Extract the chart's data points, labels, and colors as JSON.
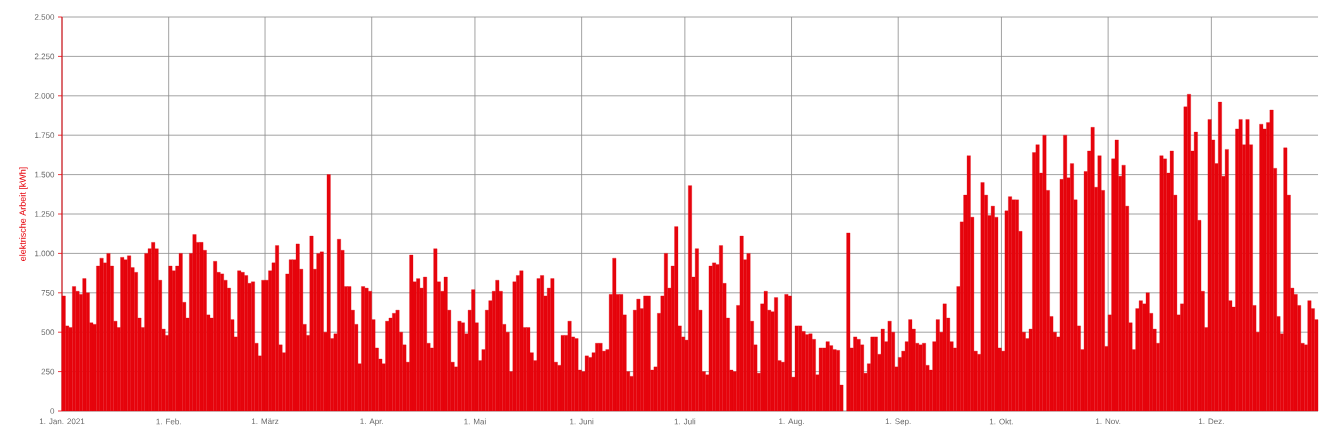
{
  "chart_data": {
    "type": "bar",
    "ylabel": "elektrische Arbeit [kWh]",
    "color": "#e6040c",
    "grid": true,
    "xlim": [
      "2021-01-01",
      "2022-01-01"
    ],
    "xticks": [
      {
        "value": "2021-01-01",
        "label": "1. Jan. 2021"
      },
      {
        "value": "2021-02-01",
        "label": "1. Feb."
      },
      {
        "value": "2021-03-01",
        "label": "1. März"
      },
      {
        "value": "2021-04-01",
        "label": "1. Apr."
      },
      {
        "value": "2021-05-01",
        "label": "1. Mai"
      },
      {
        "value": "2021-06-01",
        "label": "1. Juni"
      },
      {
        "value": "2021-07-01",
        "label": "1. Juli"
      },
      {
        "value": "2021-08-01",
        "label": "1. Aug."
      },
      {
        "value": "2021-09-01",
        "label": "1. Sep."
      },
      {
        "value": "2021-10-01",
        "label": "1. Okt."
      },
      {
        "value": "2021-11-01",
        "label": "1. Nov."
      },
      {
        "value": "2021-12-01",
        "label": "1. Dez."
      }
    ],
    "ylim": [
      0,
      2500
    ],
    "yticks": [
      0,
      250,
      500,
      750,
      {
        "value": 1000,
        "label": "1.000"
      },
      {
        "value": 1250,
        "label": "1.250"
      },
      {
        "value": 1500,
        "label": "1.500"
      },
      {
        "value": 1750,
        "label": "1.750"
      },
      {
        "value": 2000,
        "label": "2.000"
      },
      {
        "value": 2250,
        "label": "2.250"
      },
      {
        "value": 2500,
        "label": "2.500"
      }
    ],
    "x": [
      "2021-01-01",
      "2021-01-02",
      "2021-01-03",
      "2021-01-04",
      "2021-01-05",
      "2021-01-06",
      "2021-01-07",
      "2021-01-08",
      "2021-01-09",
      "2021-01-10",
      "2021-01-11",
      "2021-01-12",
      "2021-01-13",
      "2021-01-14",
      "2021-01-15",
      "2021-01-16",
      "2021-01-17",
      "2021-01-18",
      "2021-01-19",
      "2021-01-20",
      "2021-01-21",
      "2021-01-22",
      "2021-01-23",
      "2021-01-24",
      "2021-01-25",
      "2021-01-26",
      "2021-01-27",
      "2021-01-28",
      "2021-01-29",
      "2021-01-30",
      "2021-01-31",
      "2021-02-01",
      "2021-02-02",
      "2021-02-03",
      "2021-02-04",
      "2021-02-05",
      "2021-02-06",
      "2021-02-07",
      "2021-02-08",
      "2021-02-09",
      "2021-02-10",
      "2021-02-11",
      "2021-02-12",
      "2021-02-13",
      "2021-02-14",
      "2021-02-15",
      "2021-02-16",
      "2021-02-17",
      "2021-02-18",
      "2021-02-19",
      "2021-02-20",
      "2021-02-21",
      "2021-02-22",
      "2021-02-23",
      "2021-02-24",
      "2021-02-25",
      "2021-02-26",
      "2021-02-27",
      "2021-02-28",
      "2021-03-01",
      "2021-03-02",
      "2021-03-03",
      "2021-03-04",
      "2021-03-05",
      "2021-03-06",
      "2021-03-07",
      "2021-03-08",
      "2021-03-09",
      "2021-03-10",
      "2021-03-11",
      "2021-03-12",
      "2021-03-13",
      "2021-03-14",
      "2021-03-15",
      "2021-03-16",
      "2021-03-17",
      "2021-03-18",
      "2021-03-19",
      "2021-03-20",
      "2021-03-21",
      "2021-03-22",
      "2021-03-23",
      "2021-03-24",
      "2021-03-25",
      "2021-03-26",
      "2021-03-27",
      "2021-03-28",
      "2021-03-29",
      "2021-03-30",
      "2021-03-31",
      "2021-04-01",
      "2021-04-02",
      "2021-04-03",
      "2021-04-04",
      "2021-04-05",
      "2021-04-06",
      "2021-04-07",
      "2021-04-08",
      "2021-04-09",
      "2021-04-10",
      "2021-04-11",
      "2021-04-12",
      "2021-04-13",
      "2021-04-14",
      "2021-04-15",
      "2021-04-16",
      "2021-04-17",
      "2021-04-18",
      "2021-04-19",
      "2021-04-20",
      "2021-04-21",
      "2021-04-22",
      "2021-04-23",
      "2021-04-24",
      "2021-04-25",
      "2021-04-26",
      "2021-04-27",
      "2021-04-28",
      "2021-04-29",
      "2021-04-30",
      "2021-05-01",
      "2021-05-02",
      "2021-05-03",
      "2021-05-04",
      "2021-05-05",
      "2021-05-06",
      "2021-05-07",
      "2021-05-08",
      "2021-05-09",
      "2021-05-10",
      "2021-05-11",
      "2021-05-12",
      "2021-05-13",
      "2021-05-14",
      "2021-05-15",
      "2021-05-16",
      "2021-05-17",
      "2021-05-18",
      "2021-05-19",
      "2021-05-20",
      "2021-05-21",
      "2021-05-22",
      "2021-05-23",
      "2021-05-24",
      "2021-05-25",
      "2021-05-26",
      "2021-05-27",
      "2021-05-28",
      "2021-05-29",
      "2021-05-30",
      "2021-05-31",
      "2021-06-01",
      "2021-06-02",
      "2021-06-03",
      "2021-06-04",
      "2021-06-05",
      "2021-06-06",
      "2021-06-07",
      "2021-06-08",
      "2021-06-09",
      "2021-06-10",
      "2021-06-11",
      "2021-06-12",
      "2021-06-13",
      "2021-06-14",
      "2021-06-15",
      "2021-06-16",
      "2021-06-17",
      "2021-06-18",
      "2021-06-19",
      "2021-06-20",
      "2021-06-21",
      "2021-06-22",
      "2021-06-23",
      "2021-06-24",
      "2021-06-25",
      "2021-06-26",
      "2021-06-27",
      "2021-06-28",
      "2021-06-29",
      "2021-06-30",
      "2021-07-01",
      "2021-07-02",
      "2021-07-03",
      "2021-07-04",
      "2021-07-05",
      "2021-07-06",
      "2021-07-07",
      "2021-07-08",
      "2021-07-09",
      "2021-07-10",
      "2021-07-11",
      "2021-07-12",
      "2021-07-13",
      "2021-07-14",
      "2021-07-15",
      "2021-07-16",
      "2021-07-17",
      "2021-07-18",
      "2021-07-19",
      "2021-07-20",
      "2021-07-21",
      "2021-07-22",
      "2021-07-23",
      "2021-07-24",
      "2021-07-25",
      "2021-07-26",
      "2021-07-27",
      "2021-07-28",
      "2021-07-29",
      "2021-07-30",
      "2021-07-31",
      "2021-08-01",
      "2021-08-02",
      "2021-08-03",
      "2021-08-04",
      "2021-08-05",
      "2021-08-06",
      "2021-08-07",
      "2021-08-08",
      "2021-08-09",
      "2021-08-10",
      "2021-08-11",
      "2021-08-12",
      "2021-08-13",
      "2021-08-14",
      "2021-08-15",
      "2021-08-16",
      "2021-08-17",
      "2021-08-18",
      "2021-08-19",
      "2021-08-20",
      "2021-08-21",
      "2021-08-22",
      "2021-08-23",
      "2021-08-24",
      "2021-08-25",
      "2021-08-26",
      "2021-08-27",
      "2021-08-28",
      "2021-08-29",
      "2021-08-30",
      "2021-08-31",
      "2021-09-01",
      "2021-09-02",
      "2021-09-03",
      "2021-09-04",
      "2021-09-05",
      "2021-09-06",
      "2021-09-07",
      "2021-09-08",
      "2021-09-09",
      "2021-09-10",
      "2021-09-11",
      "2021-09-12",
      "2021-09-13",
      "2021-09-14",
      "2021-09-15",
      "2021-09-16",
      "2021-09-17",
      "2021-09-18",
      "2021-09-19",
      "2021-09-20",
      "2021-09-21",
      "2021-09-22",
      "2021-09-23",
      "2021-09-24",
      "2021-09-25",
      "2021-09-26",
      "2021-09-27",
      "2021-09-28",
      "2021-09-29",
      "2021-09-30",
      "2021-10-01",
      "2021-10-02",
      "2021-10-03",
      "2021-10-04",
      "2021-10-05",
      "2021-10-06",
      "2021-10-07",
      "2021-10-08",
      "2021-10-09",
      "2021-10-10",
      "2021-10-11",
      "2021-10-12",
      "2021-10-13",
      "2021-10-14",
      "2021-10-15",
      "2021-10-16",
      "2021-10-17",
      "2021-10-18",
      "2021-10-19",
      "2021-10-20",
      "2021-10-21",
      "2021-10-22",
      "2021-10-23",
      "2021-10-24",
      "2021-10-25",
      "2021-10-26",
      "2021-10-27",
      "2021-10-28",
      "2021-10-29",
      "2021-10-30",
      "2021-10-31",
      "2021-11-01",
      "2021-11-02",
      "2021-11-03",
      "2021-11-04",
      "2021-11-05",
      "2021-11-06",
      "2021-11-07",
      "2021-11-08",
      "2021-11-09",
      "2021-11-10",
      "2021-11-11",
      "2021-11-12",
      "2021-11-13",
      "2021-11-14",
      "2021-11-15",
      "2021-11-16",
      "2021-11-17",
      "2021-11-18",
      "2021-11-19",
      "2021-11-20",
      "2021-11-21",
      "2021-11-22",
      "2021-11-23",
      "2021-11-24",
      "2021-11-25",
      "2021-11-26",
      "2021-11-27",
      "2021-11-28",
      "2021-11-29",
      "2021-11-30",
      "2021-12-01",
      "2021-12-02",
      "2021-12-03",
      "2021-12-04",
      "2021-12-05",
      "2021-12-06",
      "2021-12-07",
      "2021-12-08",
      "2021-12-09",
      "2021-12-10",
      "2021-12-11",
      "2021-12-12",
      "2021-12-13",
      "2021-12-14",
      "2021-12-15",
      "2021-12-16",
      "2021-12-17",
      "2021-12-18",
      "2021-12-19",
      "2021-12-20",
      "2021-12-21",
      "2021-12-22",
      "2021-12-23",
      "2021-12-24",
      "2021-12-25",
      "2021-12-26",
      "2021-12-27",
      "2021-12-28",
      "2021-12-29",
      "2021-12-30",
      "2021-12-31"
    ],
    "values": [
      730,
      540,
      530,
      790,
      760,
      740,
      840,
      750,
      560,
      550,
      920,
      970,
      940,
      1000,
      920,
      570,
      530,
      975,
      960,
      985,
      910,
      880,
      590,
      530,
      1000,
      1030,
      1070,
      1030,
      830,
      520,
      480,
      920,
      890,
      920,
      1000,
      690,
      590,
      1000,
      1120,
      1070,
      1070,
      1020,
      610,
      590,
      950,
      880,
      870,
      830,
      780,
      580,
      470,
      890,
      880,
      860,
      810,
      820,
      430,
      350,
      830,
      830,
      890,
      940,
      1050,
      420,
      370,
      870,
      960,
      960,
      1060,
      900,
      550,
      480,
      1110,
      900,
      1000,
      1010,
      500,
      1500,
      460,
      490,
      1090,
      1020,
      790,
      790,
      640,
      550,
      300,
      790,
      780,
      760,
      580,
      400,
      330,
      300,
      570,
      590,
      620,
      640,
      500,
      420,
      310,
      990,
      820,
      840,
      780,
      850,
      430,
      400,
      1030,
      820,
      760,
      850,
      640,
      310,
      280,
      570,
      560,
      490,
      640,
      770,
      560,
      320,
      390,
      640,
      700,
      760,
      830,
      760,
      550,
      500,
      250,
      820,
      860,
      890,
      530,
      530,
      370,
      320,
      840,
      860,
      730,
      780,
      840,
      310,
      290,
      480,
      480,
      570,
      470,
      460,
      260,
      250,
      350,
      340,
      370,
      430,
      430,
      380,
      390,
      740,
      970,
      740,
      740,
      610,
      250,
      220,
      640,
      710,
      650,
      730,
      730,
      260,
      280,
      620,
      730,
      1000,
      780,
      920,
      1170,
      540,
      470,
      450,
      1430,
      850,
      1030,
      640,
      250,
      230,
      920,
      940,
      930,
      1050,
      810,
      590,
      260,
      250,
      670,
      1110,
      960,
      1000,
      570,
      420,
      240,
      680,
      760,
      640,
      630,
      720,
      320,
      310,
      740,
      730,
      215,
      540,
      540,
      505,
      485,
      490,
      455,
      230,
      400,
      400,
      440,
      415,
      390,
      385,
      165,
      null,
      1130,
      400,
      470,
      455,
      420,
      240,
      300,
      470,
      470,
      360,
      520,
      440,
      570,
      500,
      280,
      340,
      380,
      440,
      580,
      520,
      430,
      420,
      430,
      290,
      260,
      440,
      580,
      500,
      680,
      590,
      440,
      400,
      790,
      1200,
      1370,
      1620,
      1230,
      380,
      360,
      1450,
      1370,
      1240,
      1300,
      1230,
      400,
      380,
      1270,
      1360,
      1340,
      1340,
      1140,
      500,
      460,
      520,
      1640,
      1690,
      1510,
      1750,
      1400,
      600,
      500,
      470,
      1470,
      1750,
      1480,
      1570,
      1340,
      540,
      390,
      1520,
      1650,
      1800,
      1420,
      1620,
      1400,
      410,
      610,
      1600,
      1720,
      1490,
      1560,
      1300,
      560,
      390,
      650,
      700,
      680,
      750,
      620,
      520,
      430,
      1620,
      1600,
      1510,
      1650,
      1370,
      610,
      680,
      1930,
      2010,
      1650,
      1770,
      1210,
      760,
      530,
      1850,
      1720,
      1570,
      1960,
      1490,
      1660,
      700,
      660,
      1790,
      1850,
      1690,
      1850,
      1690,
      670,
      500,
      1820,
      1790,
      1830,
      1910,
      1540,
      600,
      490,
      1670,
      1370,
      780,
      740,
      670,
      430,
      420,
      700,
      650,
      580
    ]
  }
}
